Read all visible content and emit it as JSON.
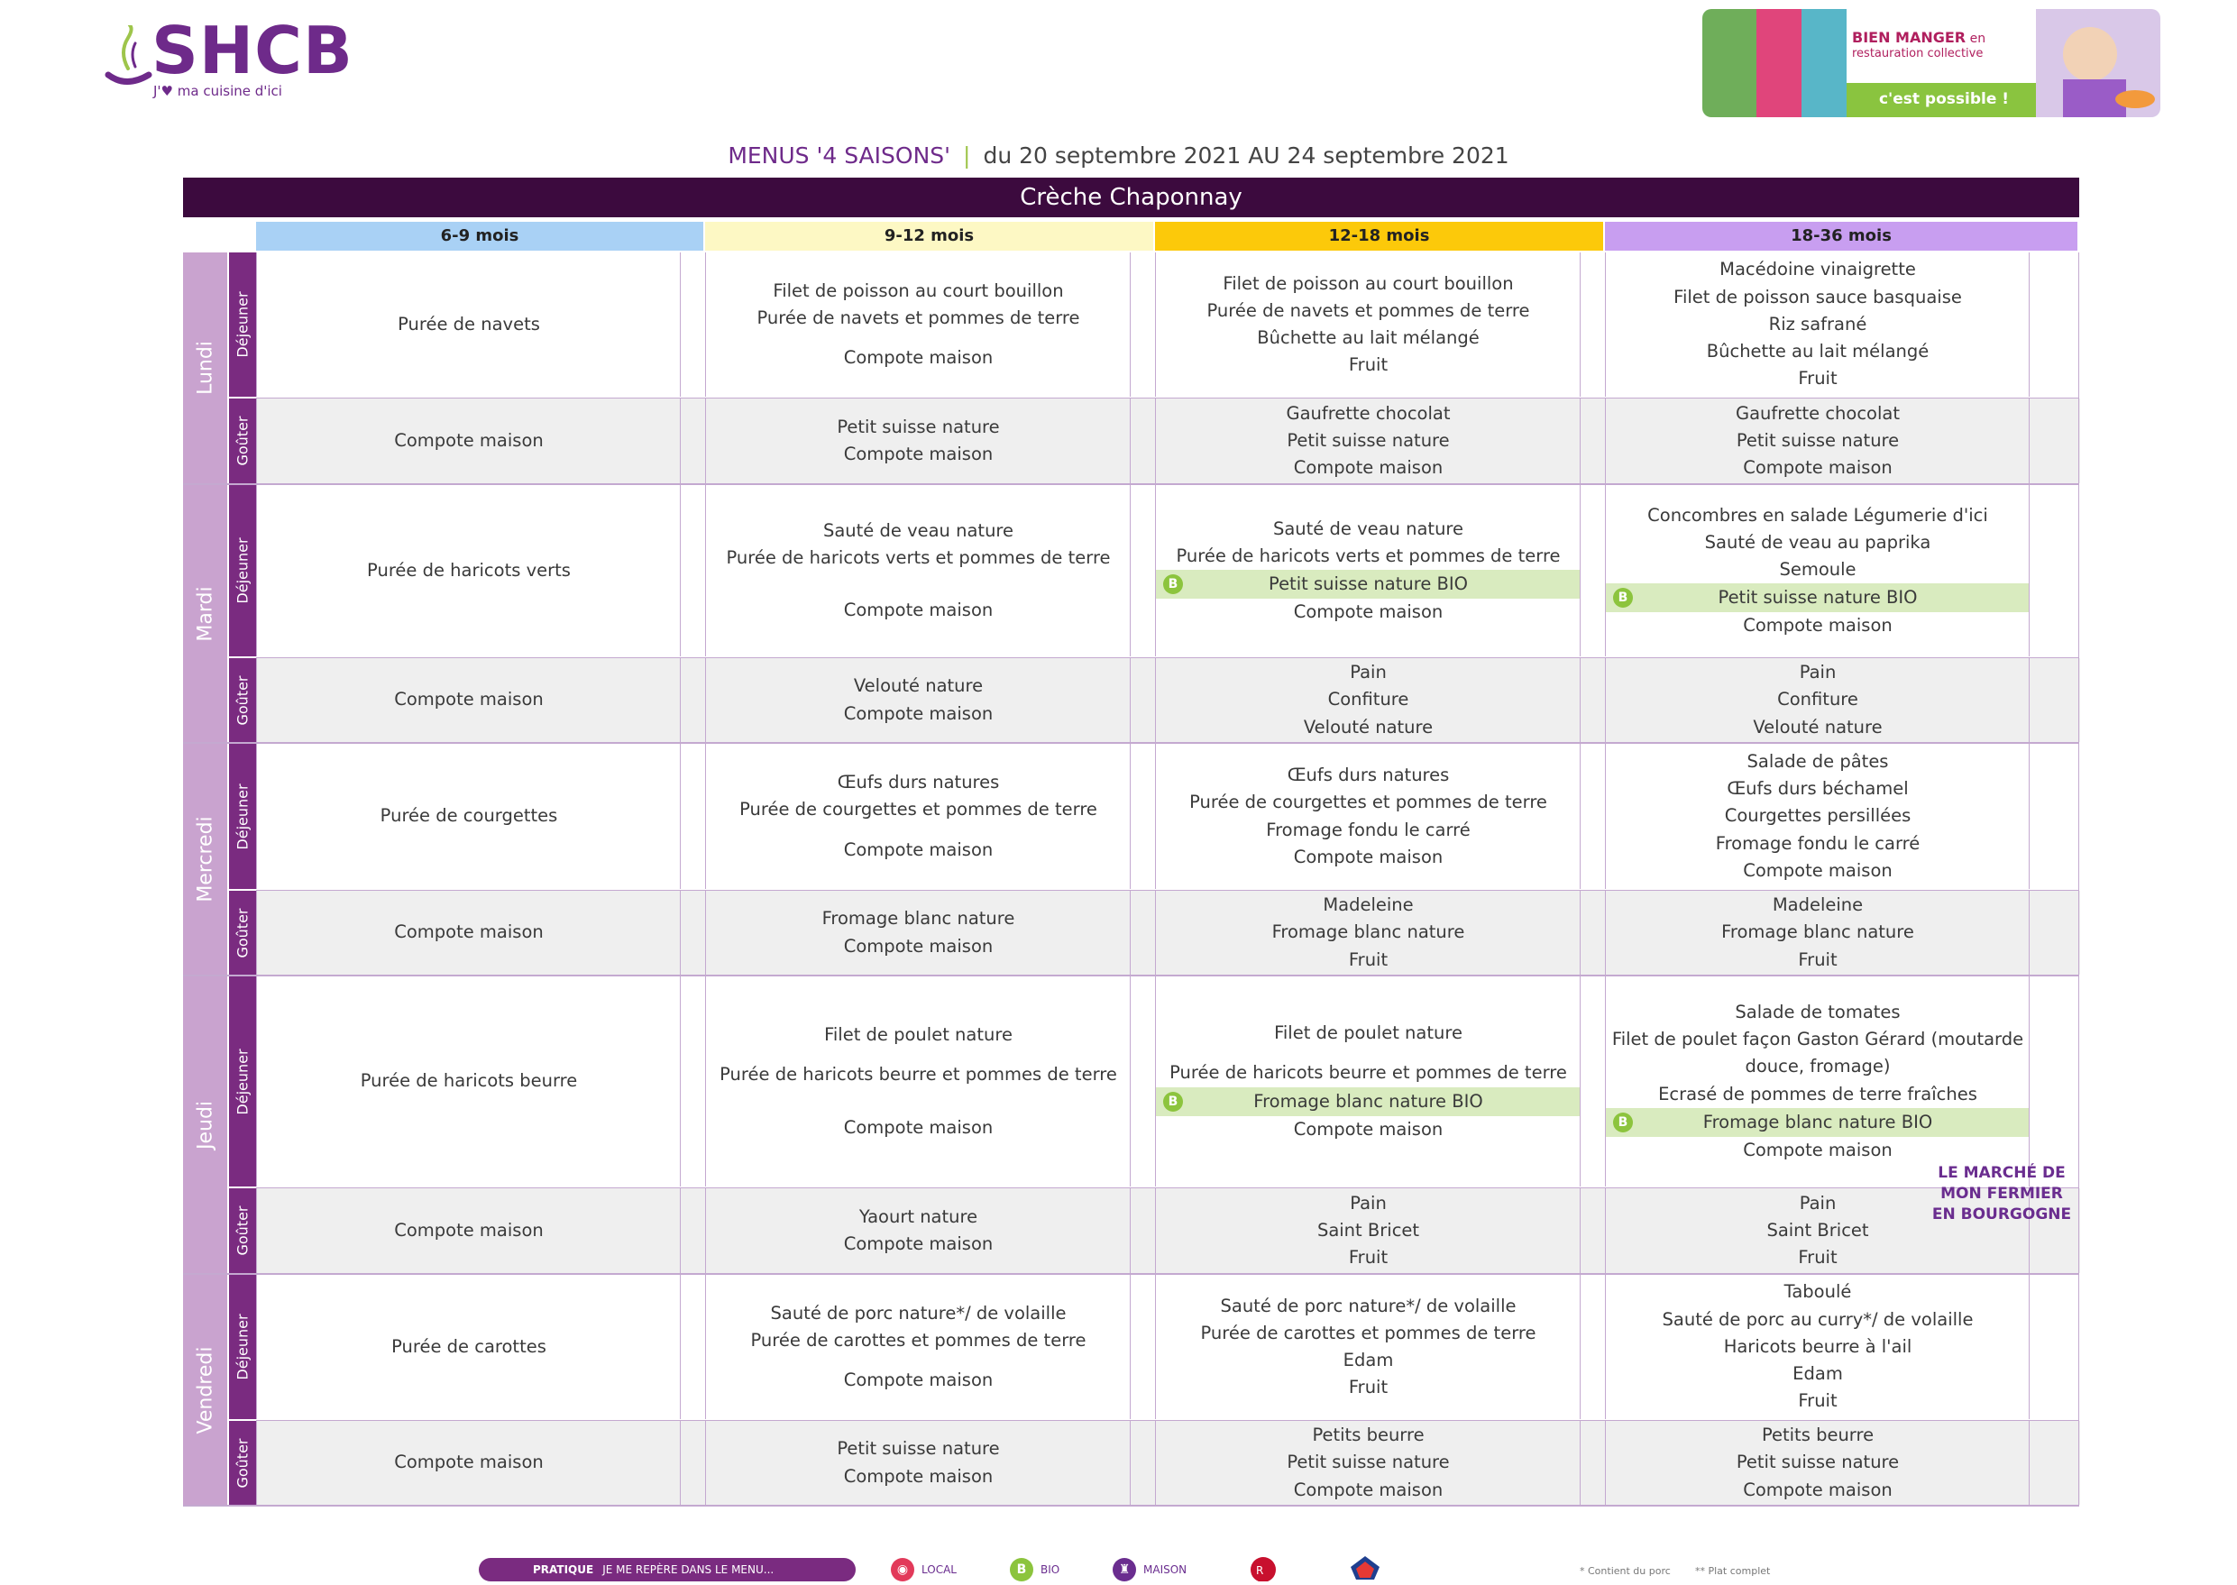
{
  "header": {
    "logo_text": "SHCB",
    "tagline": "J'♥ ma cuisine d'ici",
    "banner": {
      "line1": "BIEN MANGER",
      "line1_en": " en",
      "line2": "restauration collective",
      "cta": "c'est possible !"
    },
    "title_menu": "MENUS '4 SAISONS'",
    "title_sep": "|",
    "title_dates": "du 20 septembre 2021 AU 24 septembre 2021",
    "school": "Crèche Chaponnay"
  },
  "age_groups": [
    {
      "label": "6-9 mois",
      "color": "#a9d1f5"
    },
    {
      "label": "9-12 mois",
      "color": "#fdf8c4"
    },
    {
      "label": "12-18 mois",
      "color": "#fcc90a"
    },
    {
      "label": "18-36 mois",
      "color": "#c89ef0"
    }
  ],
  "meal_labels": {
    "dejeuner": "Déjeuner",
    "gouter": "Goûter"
  },
  "days": [
    {
      "name": "Lundi",
      "dejeuner": [
        [
          {
            "t": "Purée de navets"
          }
        ],
        [
          {
            "t": "Filet de poisson au court bouillon"
          },
          {
            "t": "Purée de navets et pommes de terre"
          },
          {
            "gap": true
          },
          {
            "t": "Compote maison"
          }
        ],
        [
          {
            "t": "Filet de poisson au court bouillon"
          },
          {
            "t": "Purée de navets et pommes de terre"
          },
          {
            "t": "Bûchette au lait mélangé"
          },
          {
            "t": "Fruit"
          }
        ],
        [
          {
            "t": "Macédoine vinaigrette"
          },
          {
            "t": "Filet de poisson sauce basquaise"
          },
          {
            "t": "Riz safrané"
          },
          {
            "t": "Bûchette au lait mélangé"
          },
          {
            "t": "Fruit"
          }
        ]
      ],
      "gouter": [
        [
          {
            "t": "Compote maison"
          }
        ],
        [
          {
            "t": "Petit suisse nature"
          },
          {
            "t": "Compote maison"
          }
        ],
        [
          {
            "t": "Gaufrette chocolat"
          },
          {
            "t": "Petit suisse nature"
          },
          {
            "t": "Compote maison"
          }
        ],
        [
          {
            "t": "Gaufrette chocolat"
          },
          {
            "t": "Petit suisse nature"
          },
          {
            "t": "Compote maison"
          }
        ]
      ]
    },
    {
      "name": "Mardi",
      "dejeuner": [
        [
          {
            "t": "Purée de haricots verts"
          }
        ],
        [
          {
            "t": "Sauté de veau nature"
          },
          {
            "t": "Purée de haricots verts et pommes de terre"
          },
          {
            "gap": true
          },
          {
            "gap": true
          },
          {
            "t": "Compote maison"
          }
        ],
        [
          {
            "t": "Sauté de veau nature"
          },
          {
            "t": "Purée de haricots verts et pommes de terre"
          },
          {
            "bio": "Petit suisse nature BIO"
          },
          {
            "t": "Compote maison"
          }
        ],
        [
          {
            "t": "Concombres en salade Légumerie d'ici"
          },
          {
            "t": "Sauté de veau au paprika"
          },
          {
            "t": "Semoule"
          },
          {
            "bio": "Petit suisse nature BIO"
          },
          {
            "t": "Compote maison"
          }
        ]
      ],
      "gouter": [
        [
          {
            "t": "Compote maison"
          }
        ],
        [
          {
            "t": "Velouté nature"
          },
          {
            "t": "Compote maison"
          }
        ],
        [
          {
            "t": "Pain"
          },
          {
            "t": "Confiture"
          },
          {
            "t": "Velouté nature"
          }
        ],
        [
          {
            "t": "Pain"
          },
          {
            "t": "Confiture"
          },
          {
            "t": "Velouté nature"
          }
        ]
      ]
    },
    {
      "name": "Mercredi",
      "dejeuner": [
        [
          {
            "t": "Purée de courgettes"
          }
        ],
        [
          {
            "t": "Œufs durs natures"
          },
          {
            "t": "Purée de courgettes et pommes de terre"
          },
          {
            "gap": true
          },
          {
            "t": "Compote maison"
          }
        ],
        [
          {
            "t": "Œufs durs natures"
          },
          {
            "t": "Purée de courgettes et pommes de terre"
          },
          {
            "t": "Fromage fondu le carré"
          },
          {
            "t": "Compote maison"
          }
        ],
        [
          {
            "t": "Salade de pâtes"
          },
          {
            "t": "Œufs durs béchamel"
          },
          {
            "t": "Courgettes persillées"
          },
          {
            "t": "Fromage fondu le carré"
          },
          {
            "t": "Compote maison"
          }
        ]
      ],
      "gouter": [
        [
          {
            "t": "Compote maison"
          }
        ],
        [
          {
            "t": "Fromage blanc nature"
          },
          {
            "t": "Compote maison"
          }
        ],
        [
          {
            "t": "Madeleine"
          },
          {
            "t": "Fromage blanc nature"
          },
          {
            "t": "Fruit"
          }
        ],
        [
          {
            "t": "Madeleine"
          },
          {
            "t": "Fromage blanc nature"
          },
          {
            "t": "Fruit"
          }
        ]
      ]
    },
    {
      "name": "Jeudi",
      "dejeuner": [
        [
          {
            "t": "Purée de haricots beurre"
          }
        ],
        [
          {
            "t": "Filet de poulet nature"
          },
          {
            "gap": true
          },
          {
            "t": "Purée de haricots beurre et pommes de terre"
          },
          {
            "gap": true
          },
          {
            "gap": true
          },
          {
            "t": "Compote maison"
          }
        ],
        [
          {
            "t": "Filet de poulet nature"
          },
          {
            "gap": true
          },
          {
            "t": "Purée de haricots beurre et pommes de terre"
          },
          {
            "bio": "Fromage blanc nature BIO"
          },
          {
            "t": "Compote maison"
          }
        ],
        [
          {
            "t": "Salade de tomates"
          },
          {
            "t": "Filet de poulet façon Gaston Gérard (moutarde douce, fromage)"
          },
          {
            "t": "Ecrasé de pommes de terre fraîches"
          },
          {
            "bio": "Fromage blanc nature BIO"
          },
          {
            "t": "Compote maison"
          }
        ]
      ],
      "gouter": [
        [
          {
            "t": "Compote maison"
          }
        ],
        [
          {
            "t": "Yaourt nature"
          },
          {
            "t": "Compote maison"
          }
        ],
        [
          {
            "t": "Pain"
          },
          {
            "t": "Saint Bricet"
          },
          {
            "t": "Fruit"
          }
        ],
        [
          {
            "t": "Pain"
          },
          {
            "t": "Saint Bricet"
          },
          {
            "t": "Fruit"
          }
        ]
      ]
    },
    {
      "name": "Vendredi",
      "dejeuner": [
        [
          {
            "t": "Purée de carottes"
          }
        ],
        [
          {
            "t": "Sauté de porc nature*/ de volaille"
          },
          {
            "t": "Purée de carottes et pommes de terre"
          },
          {
            "gap": true
          },
          {
            "t": "Compote maison"
          }
        ],
        [
          {
            "t": "Sauté de porc nature*/ de volaille"
          },
          {
            "t": "Purée de carottes et pommes de terre"
          },
          {
            "t": "Edam"
          },
          {
            "t": "Fruit"
          }
        ],
        [
          {
            "t": "Taboulé"
          },
          {
            "t": "Sauté de porc au curry*/ de volaille"
          },
          {
            "t": "Haricots beurre à l'ail"
          },
          {
            "t": "Edam"
          },
          {
            "t": "Fruit"
          }
        ]
      ],
      "gouter": [
        [
          {
            "t": "Compote maison"
          }
        ],
        [
          {
            "t": "Petit suisse nature"
          },
          {
            "t": "Compote maison"
          }
        ],
        [
          {
            "t": "Petits beurre"
          },
          {
            "t": "Petit suisse nature"
          },
          {
            "t": "Compote maison"
          }
        ],
        [
          {
            "t": "Petits beurre"
          },
          {
            "t": "Petit suisse nature"
          },
          {
            "t": "Compote maison"
          }
        ]
      ]
    }
  ],
  "marche_label": "LE MARCHÉ DE MON FERMIER EN BOURGOGNE",
  "bio_badge": "B",
  "footer": {
    "pill_strong": "PRATIQUE",
    "pill_text": "JE ME REPÈRE DANS LE MENU...",
    "legend": [
      {
        "label": "LOCAL",
        "color": "#e23a5a",
        "glyph": "◉"
      },
      {
        "label": "BIO",
        "color": "#8cc43d",
        "glyph": "B"
      },
      {
        "label": "MAISON",
        "color": "#6a2d8f",
        "glyph": "♜"
      }
    ],
    "note1": "* Contient du porc",
    "note2": "** Plat complet"
  }
}
